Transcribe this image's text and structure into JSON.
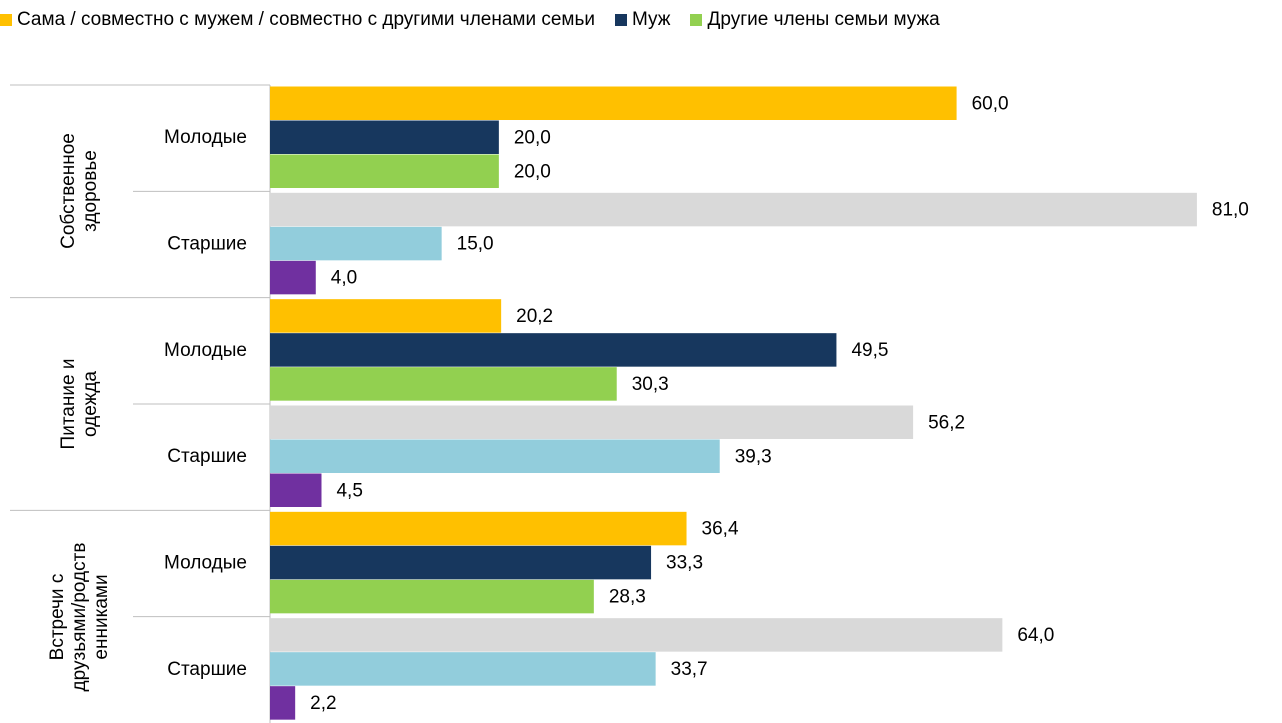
{
  "chart_data": {
    "type": "grouped_hbar",
    "groups": [
      {
        "name": "Собственное\nздоровье",
        "categories": [
          "Молодые",
          "Старшие"
        ]
      },
      {
        "name": "Питание и\nодежда",
        "categories": [
          "Молодые",
          "Старшие"
        ]
      },
      {
        "name": "Встречи с\nдрузьями/родств\nенниками",
        "categories": [
          "Молодые",
          "Старшие"
        ]
      }
    ],
    "series": [
      {
        "name": "Сама / совместно с мужем / совместно с другими членами семьи",
        "color": "#ffc000",
        "colors": [
          "#ffc000",
          "#d9d9d9",
          "#ffc000",
          "#d9d9d9",
          "#ffc000",
          "#d9d9d9"
        ],
        "values": [
          60.0,
          81.0,
          20.2,
          56.2,
          36.4,
          64.0
        ],
        "value_labels": [
          "60,0",
          "81,0",
          "20,2",
          "56,2",
          "36,4",
          "64,0"
        ]
      },
      {
        "name": "Муж",
        "color": "#17375e",
        "colors": [
          "#17375e",
          "#92cddc",
          "#17375e",
          "#92cddc",
          "#17375e",
          "#92cddc"
        ],
        "values": [
          20.0,
          15.0,
          49.5,
          39.3,
          33.3,
          33.7
        ],
        "value_labels": [
          "20,0",
          "15,0",
          "49,5",
          "39,3",
          "33,3",
          "33,7"
        ]
      },
      {
        "name": "Другие члены семьи мужа",
        "color": "#92d050",
        "colors": [
          "#92d050",
          "#7030a0",
          "#92d050",
          "#7030a0",
          "#92d050",
          "#7030a0"
        ],
        "values": [
          20.0,
          4.0,
          30.3,
          4.5,
          28.3,
          2.2
        ],
        "value_labels": [
          "20,0",
          "4,0",
          "30,3",
          "4,5",
          "28,3",
          "2,2"
        ]
      }
    ],
    "xlim": [
      0,
      88
    ]
  }
}
